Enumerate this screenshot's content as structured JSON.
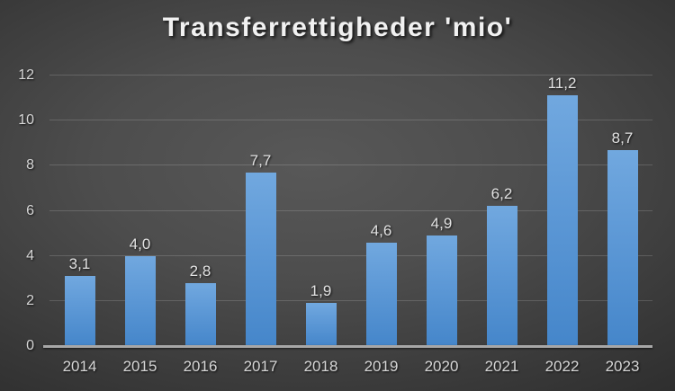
{
  "chart_data": {
    "type": "bar",
    "title": "Transferrettigheder 'mio'",
    "categories": [
      "2014",
      "2015",
      "2016",
      "2017",
      "2018",
      "2019",
      "2020",
      "2021",
      "2022",
      "2023"
    ],
    "values": [
      3.1,
      4.0,
      2.8,
      7.7,
      1.9,
      4.6,
      4.9,
      6.2,
      11.2,
      8.7
    ],
    "value_labels": [
      "3,1",
      "4,0",
      "2,8",
      "7,7",
      "1,9",
      "4,6",
      "4,9",
      "6,2",
      "11,2",
      "8,7"
    ],
    "xlabel": "",
    "ylabel": "",
    "ylim": [
      0,
      12
    ],
    "yticks": [
      0,
      2,
      4,
      6,
      8,
      10,
      12
    ],
    "ytick_labels": [
      "0",
      "2",
      "4",
      "6",
      "8",
      "10",
      "12"
    ],
    "grid": true,
    "legend": false,
    "colors": {
      "bar_gradient_top": "#71A8DF",
      "bar_gradient_bottom": "#4586CA",
      "background_center": "#585858",
      "background_edge": "#1D1D1D",
      "gridline": "rgba(255,255,255,0.16)",
      "axis_line": "#A7A7A7",
      "tick_label": "#D6D6D6",
      "value_label": "#E2E2E2",
      "title": "#F1F1F1"
    }
  }
}
